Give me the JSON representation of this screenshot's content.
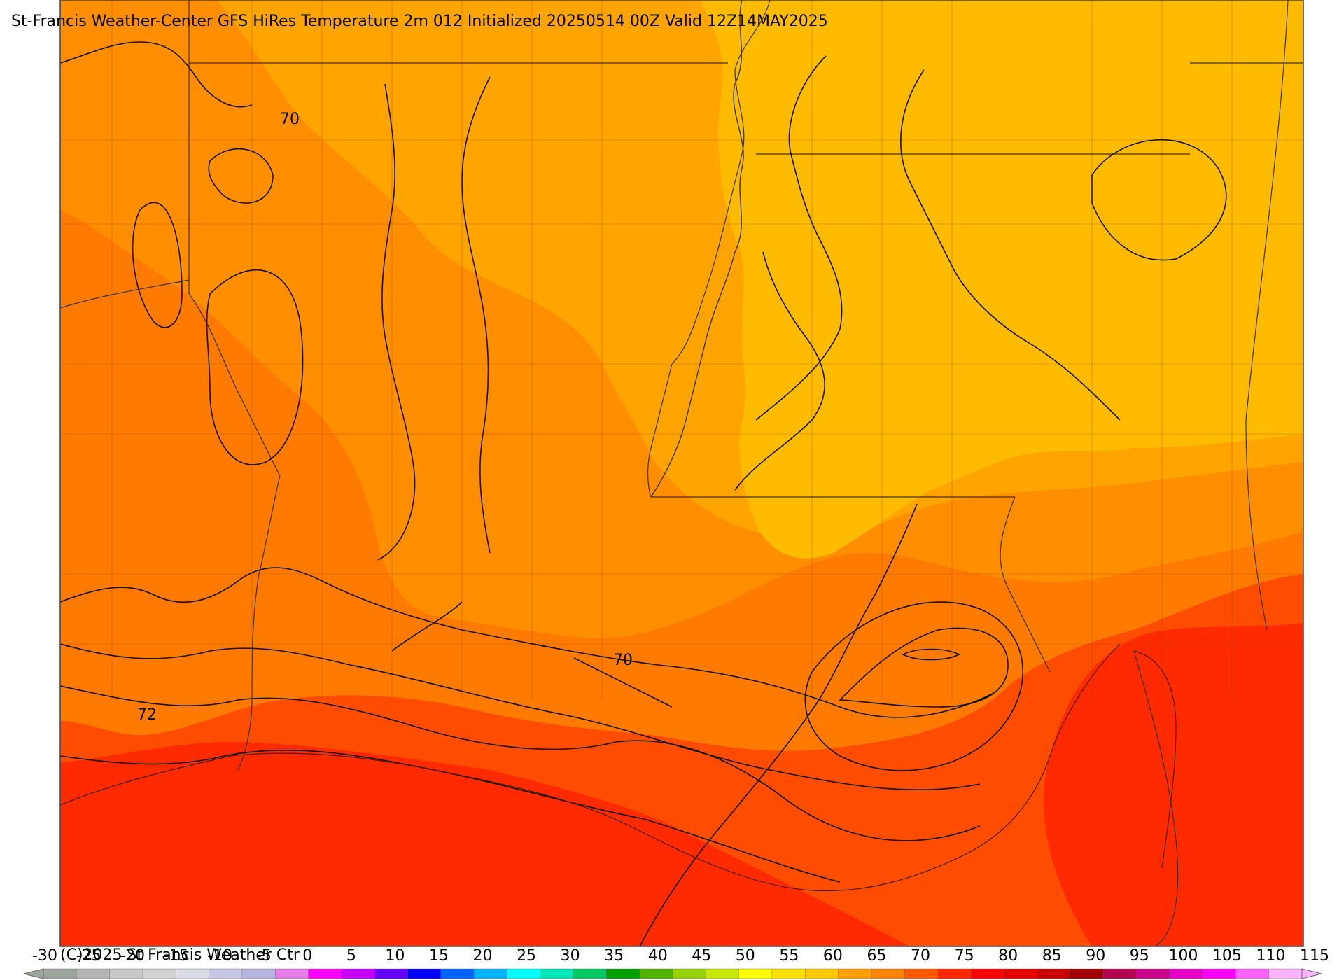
{
  "title": "St-Francis Weather-Center GFS HiRes Temperature 2m  012 Initialized 20250514 00Z Valid 12Z14MAY2025",
  "copyright": "(C)2025 St Francis Weather Ctr",
  "contour_labels": [
    "70",
    "70",
    "72"
  ],
  "colorbar": {
    "tick_labels": [
      "-30",
      "-25",
      "-20",
      "-15",
      "-10",
      "-5",
      "0",
      "5",
      "10",
      "15",
      "20",
      "25",
      "30",
      "35",
      "40",
      "45",
      "50",
      "55",
      "60",
      "65",
      "70",
      "75",
      "80",
      "85",
      "90",
      "95",
      "100",
      "105",
      "110",
      "115"
    ],
    "colors": [
      "#9ca59c",
      "#b4b4b4",
      "#c8c8c8",
      "#d2d2d2",
      "#dcdce6",
      "#c8c8e6",
      "#b4b4dc",
      "#e67ce6",
      "#ff00ff",
      "#c800ff",
      "#6400ff",
      "#0000ff",
      "#0064ff",
      "#00b4ff",
      "#00ffff",
      "#00e6b4",
      "#00c864",
      "#00a000",
      "#50b400",
      "#96d200",
      "#c8e600",
      "#ffff00",
      "#ffe100",
      "#ffc800",
      "#ffa000",
      "#ff8200",
      "#ff5a00",
      "#ff2800",
      "#ff0000",
      "#e60000",
      "#c80000",
      "#a00000",
      "#b40050",
      "#c8008c",
      "#e600c8",
      "#ff00ff",
      "#ff64ff",
      "#ffb4ff"
    ]
  },
  "fill_colors": {
    "gulf": "#ff2a00",
    "coastal": "#ff4d00",
    "mid": "#ff7a00",
    "inland": "#ff8e00",
    "north": "#ffa400",
    "northeast": "#ffbb00"
  }
}
